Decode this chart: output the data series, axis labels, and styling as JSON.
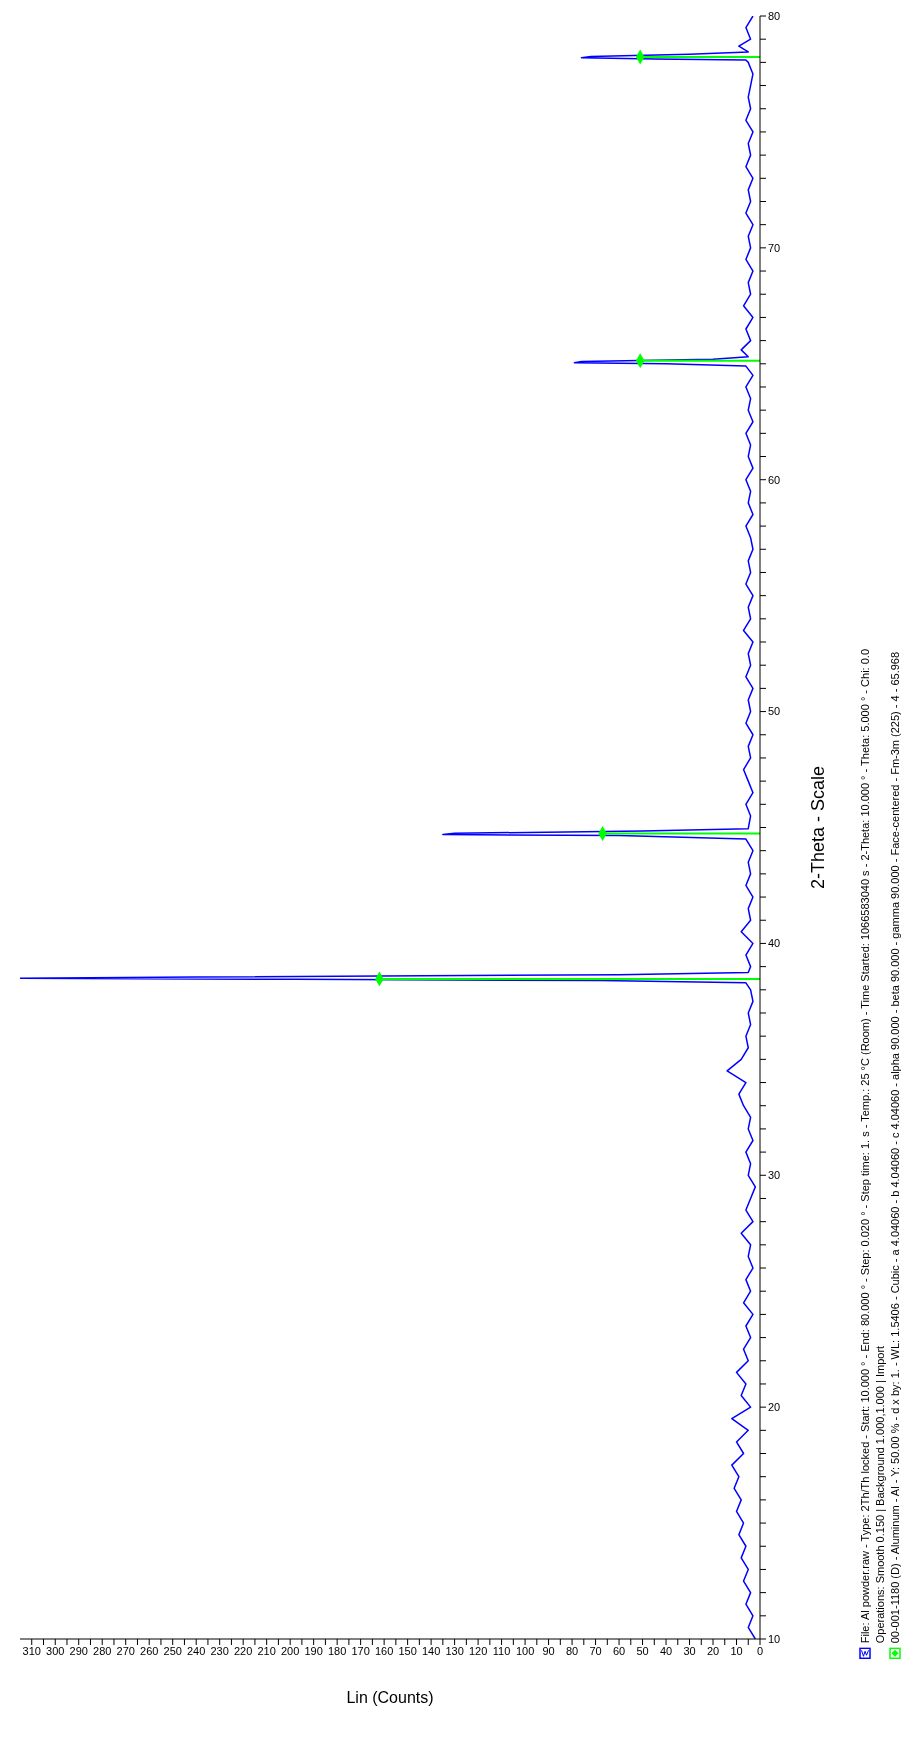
{
  "chart_data": {
    "type": "line",
    "ylabel": "2-Theta - Scale",
    "xlabel": "Lin (Counts)",
    "orientation": "horizontal",
    "ylim": [
      10,
      80
    ],
    "xlim": [
      315,
      0
    ],
    "yticks": [
      10,
      {
        "value": 11,
        "label": null
      },
      {
        "value": 12,
        "label": null
      },
      {
        "value": 13,
        "label": null
      },
      {
        "value": 14,
        "label": null
      },
      {
        "value": 15,
        "label": null
      },
      {
        "value": 16,
        "label": null
      },
      {
        "value": 17,
        "label": null
      },
      {
        "value": 18,
        "label": null
      },
      {
        "value": 19,
        "label": null
      },
      20,
      {
        "value": 21,
        "label": null
      },
      {
        "value": 22,
        "label": null
      },
      {
        "value": 23,
        "label": null
      },
      {
        "value": 24,
        "label": null
      },
      {
        "value": 25,
        "label": null
      },
      {
        "value": 26,
        "label": null
      },
      {
        "value": 27,
        "label": null
      },
      {
        "value": 28,
        "label": null
      },
      {
        "value": 29,
        "label": null
      },
      30,
      {
        "value": 31,
        "label": null
      },
      {
        "value": 32,
        "label": null
      },
      {
        "value": 33,
        "label": null
      },
      {
        "value": 34,
        "label": null
      },
      {
        "value": 35,
        "label": null
      },
      {
        "value": 36,
        "label": null
      },
      {
        "value": 37,
        "label": null
      },
      {
        "value": 38,
        "label": null
      },
      {
        "value": 39,
        "label": null
      },
      40,
      {
        "value": 41,
        "label": null
      },
      {
        "value": 42,
        "label": null
      },
      {
        "value": 43,
        "label": null
      },
      {
        "value": 44,
        "label": null
      },
      {
        "value": 45,
        "label": null
      },
      {
        "value": 46,
        "label": null
      },
      {
        "value": 47,
        "label": null
      },
      {
        "value": 48,
        "label": null
      },
      {
        "value": 49,
        "label": null
      },
      50,
      {
        "value": 51,
        "label": null
      },
      {
        "value": 52,
        "label": null
      },
      {
        "value": 53,
        "label": null
      },
      {
        "value": 54,
        "label": null
      },
      {
        "value": 55,
        "label": null
      },
      {
        "value": 56,
        "label": null
      },
      {
        "value": 57,
        "label": null
      },
      {
        "value": 58,
        "label": null
      },
      {
        "value": 59,
        "label": null
      },
      60,
      {
        "value": 61,
        "label": null
      },
      {
        "value": 62,
        "label": null
      },
      {
        "value": 63,
        "label": null
      },
      {
        "value": 64,
        "label": null
      },
      {
        "value": 65,
        "label": null
      },
      {
        "value": 66,
        "label": null
      },
      {
        "value": 67,
        "label": null
      },
      {
        "value": 68,
        "label": null
      },
      {
        "value": 69,
        "label": null
      },
      70,
      {
        "value": 71,
        "label": null
      },
      {
        "value": 72,
        "label": null
      },
      {
        "value": 73,
        "label": null
      },
      {
        "value": 74,
        "label": null
      },
      {
        "value": 75,
        "label": null
      },
      {
        "value": 76,
        "label": null
      },
      {
        "value": 77,
        "label": null
      },
      {
        "value": 78,
        "label": null
      },
      {
        "value": 79,
        "label": null
      },
      80
    ],
    "xticks": [
      0,
      {
        "value": 5,
        "label": null
      },
      10,
      {
        "value": 15,
        "label": null
      },
      20,
      {
        "value": 25,
        "label": null
      },
      30,
      {
        "value": 35,
        "label": null
      },
      40,
      {
        "value": 45,
        "label": null
      },
      50,
      {
        "value": 55,
        "label": null
      },
      60,
      {
        "value": 65,
        "label": null
      },
      70,
      {
        "value": 75,
        "label": null
      },
      80,
      {
        "value": 85,
        "label": null
      },
      90,
      {
        "value": 95,
        "label": null
      },
      100,
      {
        "value": 105,
        "label": null
      },
      110,
      {
        "value": 115,
        "label": null
      },
      120,
      {
        "value": 125,
        "label": null
      },
      130,
      {
        "value": 135,
        "label": null
      },
      140,
      {
        "value": 145,
        "label": null
      },
      150,
      {
        "value": 155,
        "label": null
      },
      160,
      {
        "value": 165,
        "label": null
      },
      170,
      {
        "value": 175,
        "label": null
      },
      180,
      {
        "value": 185,
        "label": null
      },
      190,
      {
        "value": 195,
        "label": null
      },
      200,
      {
        "value": 205,
        "label": null
      },
      210,
      {
        "value": 215,
        "label": null
      },
      220,
      {
        "value": 225,
        "label": null
      },
      230,
      {
        "value": 235,
        "label": null
      },
      240,
      {
        "value": 245,
        "label": null
      },
      250,
      {
        "value": 255,
        "label": null
      },
      260,
      {
        "value": 265,
        "label": null
      },
      270,
      {
        "value": 275,
        "label": null
      },
      280,
      {
        "value": 285,
        "label": null
      },
      290,
      {
        "value": 295,
        "label": null
      },
      300,
      {
        "value": 305,
        "label": null
      },
      310
    ],
    "legend": "right",
    "marker": "none",
    "annotations": [
      "Operations: Smooth 0.150 | Background 1.000,1.000 | Import"
    ],
    "series": [
      {
        "name": "File: Al powder.raw - Type: 2Th/Th locked - Start: 10.000 ° - End: 80.000 ° - Step: 0.020 ° - Step time: 1. s - Temp.: 25 °C (Room) - Time Started: 1066583040 s - 2-Theta: 10.000 ° - Theta: 5.000 ° - Chi: 0.0",
        "color": "#0000ff",
        "x": [
          10,
          10.5,
          11,
          11.5,
          12,
          12.5,
          13,
          13.5,
          14,
          14.5,
          15,
          15.5,
          16,
          16.5,
          17,
          17.5,
          18,
          18.5,
          19,
          19.5,
          20,
          20.5,
          21,
          21.5,
          22,
          22.5,
          23,
          23.5,
          24,
          24.5,
          25,
          25.5,
          26,
          26.5,
          27,
          27.5,
          28,
          28.5,
          29,
          29.5,
          30,
          30.5,
          31,
          31.5,
          32,
          32.5,
          33,
          33.5,
          34,
          34.5,
          35,
          35.5,
          36,
          36.5,
          37,
          37.5,
          38,
          38.3,
          38.4,
          38.45,
          38.5,
          38.55,
          38.65,
          38.75,
          39,
          39.5,
          40,
          40.5,
          41,
          41.5,
          42,
          42.5,
          43,
          43.5,
          44,
          44.5,
          44.65,
          44.7,
          44.75,
          44.85,
          44.95,
          45.5,
          46,
          46.5,
          47,
          47.5,
          48,
          48.5,
          49,
          49.5,
          50,
          50.5,
          51,
          51.5,
          52,
          52.5,
          53,
          53.5,
          54,
          54.5,
          55,
          55.5,
          56,
          56.5,
          57,
          57.5,
          58,
          58.5,
          59,
          59.5,
          60,
          60.5,
          61,
          61.5,
          62,
          62.5,
          63,
          63.5,
          64,
          64.5,
          64.9,
          65,
          65.05,
          65.1,
          65.2,
          65.3,
          65.6,
          66,
          66.5,
          67,
          67.5,
          68,
          68.5,
          69,
          69.5,
          70,
          70.5,
          71,
          71.5,
          72,
          72.5,
          73,
          73.5,
          74,
          74.5,
          75,
          75.5,
          76,
          76.5,
          77,
          77.5,
          78,
          78.1,
          78.15,
          78.2,
          78.25,
          78.35,
          78.45,
          78.7,
          79,
          79.5,
          80
        ],
        "values": [
          2,
          5,
          3,
          6,
          4,
          7,
          5,
          8,
          6,
          9,
          7,
          10,
          8,
          11,
          9,
          12,
          7,
          10,
          5,
          12,
          4,
          8,
          6,
          10,
          5,
          7,
          4,
          6,
          3,
          7,
          4,
          6,
          3,
          5,
          4,
          8,
          3,
          6,
          4,
          2,
          5,
          4,
          6,
          3,
          5,
          4,
          7,
          9,
          6,
          14,
          8,
          5,
          6,
          4,
          5,
          3,
          4,
          6,
          68,
          198,
          315,
          240,
          60,
          5,
          4,
          6,
          3,
          8,
          4,
          5,
          3,
          6,
          4,
          5,
          3,
          6,
          60,
          135,
          130,
          50,
          5,
          4,
          6,
          3,
          5,
          7,
          4,
          5,
          3,
          6,
          4,
          5,
          3,
          6,
          4,
          5,
          3,
          7,
          4,
          5,
          3,
          6,
          4,
          5,
          3,
          4,
          6,
          3,
          5,
          4,
          6,
          3,
          5,
          4,
          6,
          3,
          5,
          4,
          6,
          3,
          6,
          40,
          79,
          76,
          20,
          5,
          8,
          4,
          6,
          3,
          7,
          4,
          5,
          3,
          6,
          4,
          5,
          3,
          6,
          4,
          5,
          3,
          6,
          4,
          5,
          3,
          6,
          4,
          5,
          4,
          3,
          5,
          6,
          45,
          76,
          72,
          30,
          5,
          9,
          4,
          6,
          3
        ]
      },
      {
        "name": "00-001-1180 (D) - Aluminum - Al - Y: 50.00 % - d x by: 1. - WL: 1.5406 - Cubic - a 4.04060 - b 4.04060 - c 4.04060 - alpha 90.000 - beta 90.000 - gamma 90.000 - Face-centered - Fm-3m (225) - 4 - 65.968",
        "type": "lollipop",
        "color": "#00ff00",
        "marker": "diamond",
        "x": [
          38.47,
          44.74,
          65.13,
          78.23
        ],
        "values": [
          162,
          67,
          51,
          51
        ]
      }
    ]
  }
}
